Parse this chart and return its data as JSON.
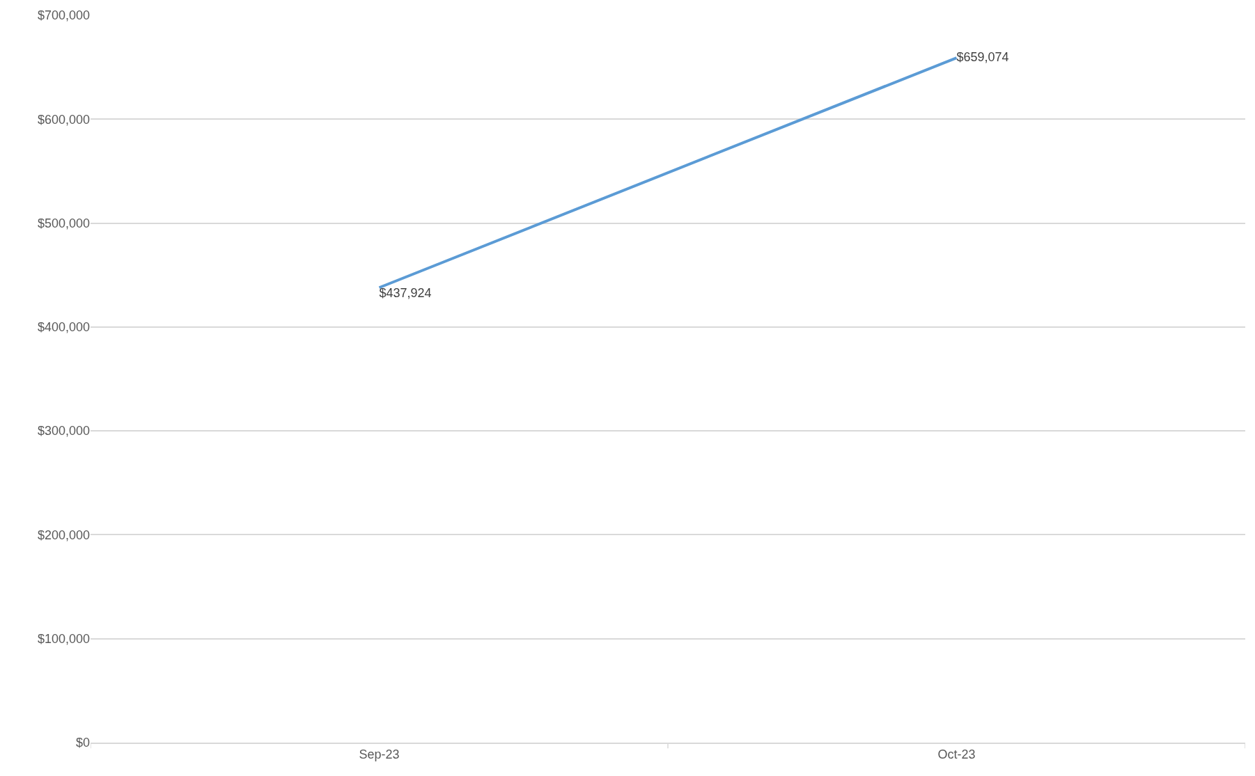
{
  "chart_data": {
    "type": "line",
    "categories": [
      "Sep-23",
      "Oct-23"
    ],
    "series": [
      {
        "color": "#5b9bd5",
        "values": [
          437924,
          659074
        ],
        "value_labels": [
          "$437,924",
          "$659,074"
        ]
      }
    ],
    "ylim": [
      0,
      700000
    ],
    "yticks": [
      {
        "value": 0,
        "label": "$0"
      },
      {
        "value": 100000,
        "label": "$100,000"
      },
      {
        "value": 200000,
        "label": "$200,000"
      },
      {
        "value": 300000,
        "label": "$300,000"
      },
      {
        "value": 400000,
        "label": "$400,000"
      },
      {
        "value": 500000,
        "label": "$500,000"
      },
      {
        "value": 600000,
        "label": "$600,000"
      },
      {
        "value": 700000,
        "label": "$700,000"
      }
    ],
    "grid": "y",
    "marker": "none",
    "line_style": "solid"
  }
}
